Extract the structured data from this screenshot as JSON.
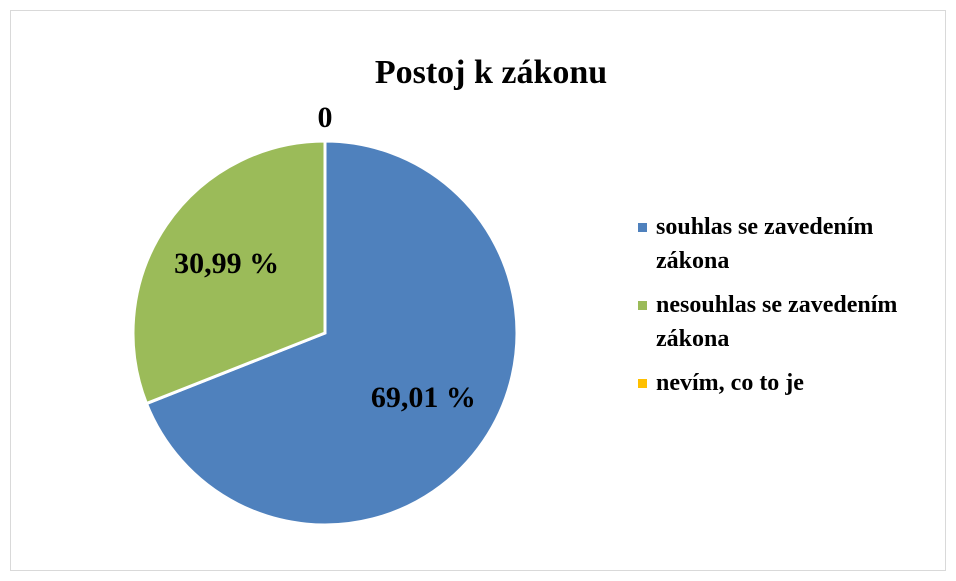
{
  "chart_data": {
    "type": "pie",
    "title": "Postoj k zákonu",
    "categories": [
      "souhlas se zavedením zákona",
      "nesouhlas se zavedením zákona",
      "nevím, co to je"
    ],
    "values": [
      69.01,
      30.99,
      0
    ],
    "value_labels": [
      "69,01 %",
      "30,99 %",
      "0"
    ],
    "colors": [
      "#4f81bd",
      "#9bbb59",
      "#ffc000"
    ],
    "legend": "right"
  }
}
